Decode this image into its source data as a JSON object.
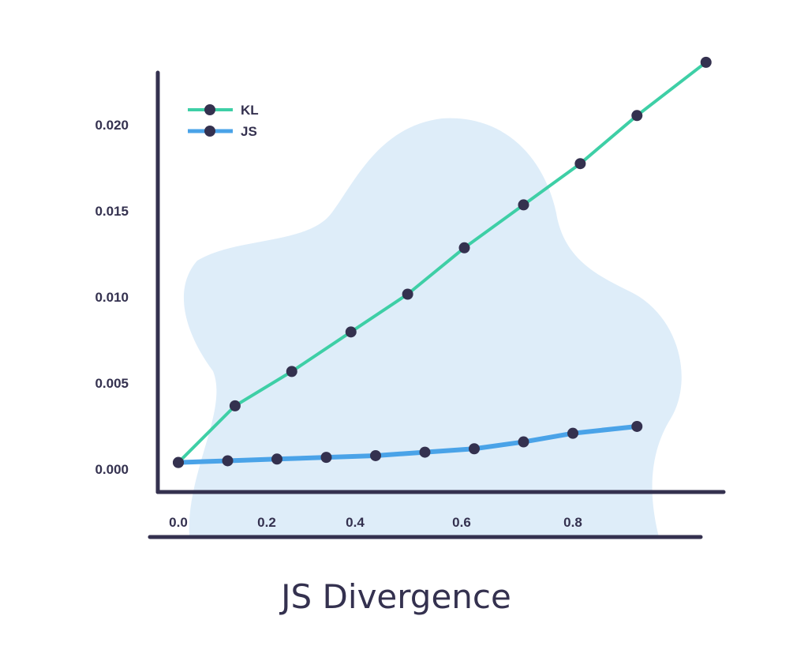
{
  "chart_data": {
    "type": "line",
    "title": "JS Divergence",
    "xlabel": "",
    "ylabel": "",
    "x_ticks": [
      "0.0",
      "0.2",
      "0.4",
      "0.6",
      "0.8"
    ],
    "y_ticks": [
      "0.000",
      "0.005",
      "0.010",
      "0.015",
      "0.020"
    ],
    "xlim": [
      0.0,
      0.92
    ],
    "ylim": [
      0.0,
      0.024
    ],
    "grid": false,
    "legend_position": "top-left",
    "series": [
      {
        "name": "KL",
        "color": "#3ecfa6",
        "x": [
          0.0,
          0.115,
          0.23,
          0.35,
          0.465,
          0.58,
          0.7,
          0.815,
          0.93
        ],
        "values": [
          0.0002,
          0.0035,
          0.0055,
          0.0078,
          0.01,
          0.0127,
          0.0152,
          0.0176,
          0.0204
        ],
        "extra_point": {
          "x": 1.07,
          "y": 0.0235
        }
      },
      {
        "name": "JS",
        "color": "#4aa3e8",
        "x": [
          0.0,
          0.1,
          0.2,
          0.3,
          0.4,
          0.5,
          0.6,
          0.7,
          0.8,
          0.93
        ],
        "values": [
          0.0002,
          0.0003,
          0.0004,
          0.0005,
          0.0006,
          0.0008,
          0.001,
          0.0014,
          0.0019,
          0.0023
        ]
      }
    ],
    "colors": {
      "axis": "#34314f",
      "marker": "#34314f",
      "blob": "#deedf9"
    }
  }
}
